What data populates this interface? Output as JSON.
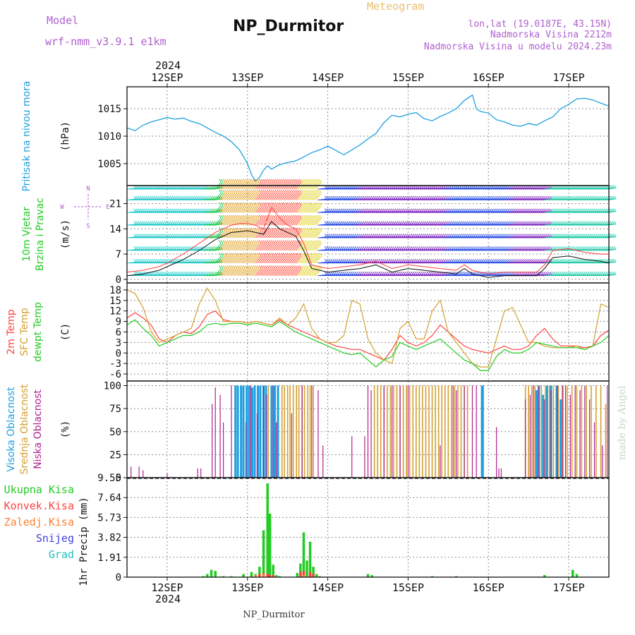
{
  "header": {
    "model_label": "Model",
    "model_name": "wrf-nmm_v3.9.1 e1km",
    "title": "NP_Durmitor",
    "subtitle": "Meteogram",
    "lonlat": "lon,lat (19.0187E, 43.15N)",
    "elevation": "Nadmorska Visina 2212m",
    "model_elevation": "Nadmorska Visina u modelu 2024.23m",
    "footer": "NP_Durmitor",
    "credit": "made by Angel",
    "year": "2024"
  },
  "colors": {
    "pressure": "#1f9fdf",
    "wind_label": "#22cc22",
    "temp2m": "#ff4040",
    "sfc": "#d4a030",
    "dewpt": "#22cc22",
    "high_cloud": "#1f9fdf",
    "mid_cloud": "#d4a030",
    "low_cloud": "#b02090",
    "total_precip": "#22cc22",
    "conv_precip": "#ff4040",
    "frozen_precip": "#ff8030",
    "snow": "#4040e0",
    "hail": "#20c0c0",
    "grid": "#909090"
  },
  "chart_data": [
    {
      "id": "pressure",
      "type": "line",
      "ylabel": "(hPa)",
      "side_labels": [
        "Pritisak na nivou mora"
      ],
      "ylim": [
        1001,
        1019
      ],
      "yticks": [
        1005,
        1010,
        1015
      ],
      "x_days": [
        "12SEP",
        "13SEP",
        "14SEP",
        "15SEP",
        "16SEP",
        "17SEP"
      ],
      "x_range_days": [
        -0.5,
        5.5
      ],
      "x": [
        -0.5,
        -0.4,
        -0.3,
        -0.2,
        -0.1,
        0.0,
        0.1,
        0.2,
        0.3,
        0.4,
        0.5,
        0.6,
        0.7,
        0.8,
        0.9,
        1.0,
        1.05,
        1.1,
        1.15,
        1.2,
        1.25,
        1.3,
        1.4,
        1.5,
        1.6,
        1.7,
        1.8,
        1.9,
        2.0,
        2.1,
        2.2,
        2.3,
        2.4,
        2.5,
        2.6,
        2.7,
        2.8,
        2.9,
        3.0,
        3.1,
        3.2,
        3.3,
        3.4,
        3.5,
        3.6,
        3.7,
        3.8,
        3.85,
        3.9,
        4.0,
        4.1,
        4.2,
        4.3,
        4.4,
        4.5,
        4.6,
        4.7,
        4.8,
        4.9,
        5.0,
        5.1,
        5.2,
        5.3,
        5.4,
        5.5
      ],
      "series": [
        {
          "values": [
            1011.5,
            1011.0,
            1012.0,
            1012.6,
            1013.0,
            1013.4,
            1013.1,
            1013.3,
            1012.7,
            1012.3,
            1011.5,
            1010.7,
            1010.0,
            1009.0,
            1007.5,
            1005.0,
            1003.0,
            1001.8,
            1002.5,
            1003.8,
            1004.6,
            1004.0,
            1004.8,
            1005.2,
            1005.5,
            1006.2,
            1007.0,
            1007.5,
            1008.2,
            1007.4,
            1006.6,
            1007.5,
            1008.4,
            1009.5,
            1010.5,
            1012.5,
            1013.8,
            1013.5,
            1014.0,
            1014.3,
            1013.2,
            1012.8,
            1013.6,
            1014.2,
            1015.0,
            1016.5,
            1017.5,
            1015.0,
            1014.5,
            1014.2,
            1013.0,
            1012.6,
            1012.0,
            1011.8,
            1012.3,
            1012.0,
            1012.8,
            1013.5,
            1015.0,
            1015.8,
            1016.8,
            1016.9,
            1016.6,
            1016.0,
            1015.5
          ]
        }
      ]
    },
    {
      "id": "wind",
      "type": "line",
      "ylabel": "(m/s)",
      "side_labels": [
        "10m Vjetar",
        "Brzina i Pravac"
      ],
      "compass": [
        "N",
        "E",
        "S",
        "W"
      ],
      "ylim": [
        -1,
        26
      ],
      "yticks": [
        0,
        7,
        14,
        21
      ],
      "barb_levels": [
        1,
        4.5,
        8,
        11.5,
        15,
        18.5,
        22,
        25
      ],
      "x": [
        -0.5,
        -0.3,
        -0.1,
        0.0,
        0.2,
        0.4,
        0.6,
        0.8,
        0.9,
        1.0,
        1.1,
        1.2,
        1.3,
        1.4,
        1.5,
        1.6,
        1.7,
        1.8,
        1.9,
        2.0,
        2.2,
        2.4,
        2.6,
        2.8,
        3.0,
        3.2,
        3.4,
        3.6,
        3.7,
        3.8,
        3.9,
        4.0,
        4.2,
        4.4,
        4.6,
        4.7,
        4.8,
        5.0,
        5.2,
        5.4,
        5.5
      ],
      "series": [
        {
          "name": "speed",
          "values": [
            1,
            1.5,
            2.5,
            3.5,
            5.5,
            8,
            11,
            13,
            13.2,
            13.5,
            13,
            12.5,
            16,
            14,
            13,
            12,
            8,
            3,
            2.5,
            2,
            2.5,
            3,
            4,
            2,
            3,
            2.5,
            2,
            1.5,
            3,
            1.5,
            1,
            0.5,
            1,
            1,
            1,
            3,
            6,
            6.5,
            5.5,
            5,
            4.5
          ]
        },
        {
          "name": "gust",
          "values": [
            2,
            2.5,
            3.5,
            4.5,
            7,
            10,
            13,
            15,
            15.5,
            15.5,
            15,
            14,
            20,
            17,
            15,
            14,
            10,
            4,
            3.5,
            3,
            3.5,
            4,
            5,
            3,
            4,
            3.5,
            3,
            2.5,
            4,
            2.5,
            2,
            1.5,
            2,
            2,
            2,
            4,
            8,
            8.5,
            7.5,
            7,
            7
          ]
        }
      ],
      "barb_segments": [
        {
          "from": -0.5,
          "to": 0.45,
          "color": "#22cccc"
        },
        {
          "from": 0.45,
          "to": 0.65,
          "color": "#22cc55"
        },
        {
          "from": 0.65,
          "to": 1.1,
          "color": "#e0a020"
        },
        {
          "from": 1.1,
          "to": 1.6,
          "color": "#ff5040"
        },
        {
          "from": 1.6,
          "to": 1.85,
          "color": "#e0d020"
        },
        {
          "from": 1.85,
          "to": 2.3,
          "color": "#3050e0"
        },
        {
          "from": 2.3,
          "to": 3.4,
          "color": "#8030c0"
        },
        {
          "from": 3.4,
          "to": 4.2,
          "color": "#3050e0"
        },
        {
          "from": 4.2,
          "to": 4.7,
          "color": "#8030c0"
        },
        {
          "from": 4.7,
          "to": 5.5,
          "color": "#22ccaa"
        }
      ]
    },
    {
      "id": "temperature",
      "type": "line",
      "ylabel": "(C)",
      "side_labels": [
        "2m Temp",
        "SFC Temp",
        "dewpt Temp"
      ],
      "ylim": [
        -8,
        20
      ],
      "yticks": [
        -6,
        -3,
        0,
        3,
        6,
        9,
        12,
        15,
        18
      ],
      "x": [
        -0.5,
        -0.4,
        -0.3,
        -0.2,
        -0.1,
        0.0,
        0.1,
        0.2,
        0.3,
        0.4,
        0.5,
        0.6,
        0.7,
        0.8,
        0.9,
        1.0,
        1.1,
        1.2,
        1.3,
        1.4,
        1.5,
        1.6,
        1.7,
        1.8,
        1.9,
        2.0,
        2.1,
        2.2,
        2.3,
        2.4,
        2.5,
        2.6,
        2.7,
        2.8,
        2.9,
        3.0,
        3.1,
        3.2,
        3.3,
        3.4,
        3.5,
        3.6,
        3.7,
        3.8,
        3.9,
        4.0,
        4.1,
        4.2,
        4.3,
        4.4,
        4.5,
        4.6,
        4.7,
        4.8,
        4.9,
        5.0,
        5.1,
        5.2,
        5.3,
        5.4,
        5.5
      ],
      "series": [
        {
          "name": "2m Temp",
          "values": [
            10,
            11.5,
            10,
            8,
            4,
            3,
            5,
            6,
            5.5,
            7.5,
            11,
            12,
            9.5,
            9,
            9,
            8.5,
            9,
            8.5,
            8,
            9.5,
            8,
            7,
            6,
            5,
            4,
            3,
            2,
            1.5,
            1,
            1,
            0,
            -1,
            -2,
            1,
            5,
            3,
            2,
            3,
            5,
            8,
            6,
            4,
            2,
            1,
            0.5,
            0,
            1,
            2,
            1,
            1,
            2,
            5,
            7,
            4,
            2,
            2,
            2,
            1.5,
            2,
            5,
            6.5
          ]
        },
        {
          "name": "SFC Temp",
          "values": [
            18,
            17,
            13,
            6,
            3,
            4,
            5,
            6,
            7,
            14,
            18.5,
            15,
            9,
            9,
            9,
            8.5,
            9,
            8.5,
            8,
            10,
            8,
            10,
            14,
            7,
            4,
            3,
            3,
            5,
            15,
            14,
            4,
            0,
            -2,
            -3,
            7,
            9,
            4,
            4,
            12,
            15,
            6,
            3,
            0,
            -3,
            -4,
            -4,
            4,
            12,
            13,
            8,
            3,
            3,
            2,
            1.5,
            1.5,
            1.5,
            2,
            1,
            2,
            14,
            13
          ]
        },
        {
          "name": "dewpt Temp",
          "values": [
            8,
            9.5,
            7,
            5,
            2,
            3,
            4,
            5,
            5,
            6,
            8,
            8.5,
            8,
            8.5,
            8.5,
            8,
            8.5,
            8,
            7.5,
            9,
            7.5,
            6,
            5,
            4,
            3,
            2,
            1,
            0,
            -0.5,
            0,
            -2,
            -4,
            -2,
            -1,
            3,
            2,
            1,
            2,
            3,
            4,
            2,
            0,
            -2,
            -3,
            -5,
            -5,
            -1,
            1,
            0,
            0,
            1,
            3,
            2.5,
            2,
            1.5,
            1.5,
            1.5,
            1,
            2,
            3,
            5
          ]
        }
      ]
    },
    {
      "id": "clouds",
      "type": "bar",
      "ylabel": "(%)",
      "side_labels": [
        "Visoka Oblacnost",
        "Srednja Oblacnost",
        "Niska Oblacnost"
      ],
      "ylim": [
        0,
        105
      ],
      "yticks": [
        0,
        25,
        50,
        75,
        100
      ],
      "series": [
        {
          "name": "high",
          "x": [
            0.85,
            0.88,
            0.92,
            0.95,
            0.99,
            1.02,
            1.06,
            1.09,
            1.13,
            1.16,
            1.2,
            1.23,
            1.3,
            1.34,
            1.38,
            3.92,
            3.93,
            4.6,
            4.63,
            4.68,
            4.73,
            4.78,
            4.85,
            4.9
          ],
          "values": [
            100,
            100,
            100,
            100,
            100,
            100,
            98,
            100,
            100,
            100,
            100,
            100,
            100,
            100,
            100,
            100,
            100,
            95,
            100,
            90,
            100,
            100,
            100,
            85
          ]
        },
        {
          "name": "mid",
          "x": [
            1.26,
            1.43,
            1.46,
            1.5,
            1.53,
            1.57,
            1.61,
            1.64,
            1.68,
            1.71,
            1.75,
            1.78,
            1.82,
            2.58,
            2.62,
            2.66,
            2.7,
            2.74,
            2.78,
            2.82,
            2.86,
            2.9,
            2.94,
            2.98,
            3.02,
            3.06,
            3.1,
            3.14,
            3.18,
            3.22,
            3.26,
            3.3,
            3.34,
            3.38,
            3.42,
            3.46,
            3.5,
            3.54,
            3.58,
            3.62,
            3.66,
            3.7,
            3.74,
            4.46,
            4.5,
            4.54,
            4.58,
            4.66,
            4.71,
            4.76,
            4.81,
            4.87,
            4.93,
            4.98,
            5.04,
            5.1,
            5.16,
            5.22,
            5.28,
            5.34,
            5.4,
            5.46
          ],
          "values": [
            100,
            100,
            100,
            100,
            100,
            100,
            100,
            100,
            100,
            100,
            100,
            100,
            100,
            100,
            100,
            100,
            100,
            100,
            100,
            100,
            100,
            100,
            100,
            100,
            100,
            100,
            100,
            100,
            100,
            100,
            100,
            100,
            100,
            100,
            100,
            100,
            100,
            100,
            100,
            100,
            100,
            100,
            100,
            100,
            100,
            100,
            100,
            100,
            100,
            100,
            100,
            100,
            100,
            100,
            100,
            100,
            100,
            100,
            100,
            100,
            100,
            80
          ]
        },
        {
          "name": "low",
          "x": [
            -0.45,
            -0.35,
            -0.3,
            0.0,
            0.38,
            0.42,
            0.56,
            0.6,
            0.66,
            0.7,
            0.8,
            0.98,
            1.04,
            1.12,
            1.2,
            1.24,
            1.32,
            1.36,
            1.55,
            1.68,
            1.8,
            1.88,
            1.94,
            2.3,
            2.46,
            2.5,
            2.54,
            2.7,
            2.8,
            2.9,
            3.0,
            3.4,
            3.56,
            3.6,
            3.7,
            3.8,
            3.85,
            4.1,
            4.13,
            4.16,
            4.46,
            4.52,
            4.56,
            4.62,
            4.7,
            4.78,
            4.86,
            4.92,
            4.96,
            5.02,
            5.08,
            5.14,
            5.2,
            5.26,
            5.32,
            5.42,
            5.48
          ],
          "values": [
            12,
            12,
            8,
            5,
            10,
            10,
            80,
            98,
            90,
            60,
            100,
            60,
            100,
            70,
            100,
            90,
            100,
            60,
            70,
            100,
            100,
            95,
            35,
            45,
            45,
            100,
            95,
            100,
            100,
            100,
            100,
            35,
            100,
            95,
            100,
            100,
            100,
            55,
            10,
            10,
            85,
            90,
            100,
            100,
            85,
            95,
            100,
            100,
            100,
            90,
            100,
            95,
            100,
            85,
            60,
            35,
            100
          ]
        }
      ]
    },
    {
      "id": "precip",
      "type": "bar",
      "ylabel": "1hr Precip (mm)",
      "side_labels": [
        "Ukupna Kisa",
        "Konvek.Kisa",
        "Zaledj.Kisa",
        "Snijeg",
        "Grad"
      ],
      "ylim": [
        0,
        9.55
      ],
      "yticks": [
        0,
        1.91,
        3.82,
        5.73,
        7.64,
        9.55
      ],
      "ytick_labels": [
        "0",
        "1.91",
        "3.82",
        "5.73",
        "7.64",
        "9.55"
      ],
      "series": [
        {
          "name": "Ukupna Kisa",
          "x": [
            0.45,
            0.5,
            0.55,
            0.6,
            0.65,
            0.7,
            0.8,
            0.95,
            1.05,
            1.1,
            1.15,
            1.2,
            1.25,
            1.28,
            1.32,
            1.36,
            1.4,
            1.62,
            1.66,
            1.7,
            1.74,
            1.78,
            1.82,
            1.86,
            1.9,
            2.5,
            2.55,
            3.3,
            3.6,
            4.7,
            5.05,
            5.1
          ],
          "values": [
            0.1,
            0.3,
            0.7,
            0.6,
            0.05,
            0.1,
            0.1,
            0.3,
            0.5,
            0.3,
            1.0,
            4.5,
            9.0,
            6.1,
            1.2,
            0.2,
            0.1,
            0.4,
            1.3,
            4.3,
            1.6,
            3.4,
            1.0,
            0.3,
            0.1,
            0.3,
            0.2,
            0.1,
            0.1,
            0.2,
            0.7,
            0.3
          ]
        },
        {
          "name": "Konvek.Kisa",
          "x": [
            1.15,
            1.2,
            1.25,
            1.28,
            1.32,
            1.66,
            1.7,
            1.78,
            1.82
          ],
          "values": [
            0.3,
            0.4,
            0.3,
            0.2,
            0.2,
            0.5,
            0.6,
            0.5,
            0.3
          ]
        },
        {
          "name": "Zaledj.Kisa",
          "x": [
            1.1,
            1.2,
            1.7
          ],
          "values": [
            0.2,
            0.3,
            0.2
          ]
        }
      ]
    }
  ]
}
